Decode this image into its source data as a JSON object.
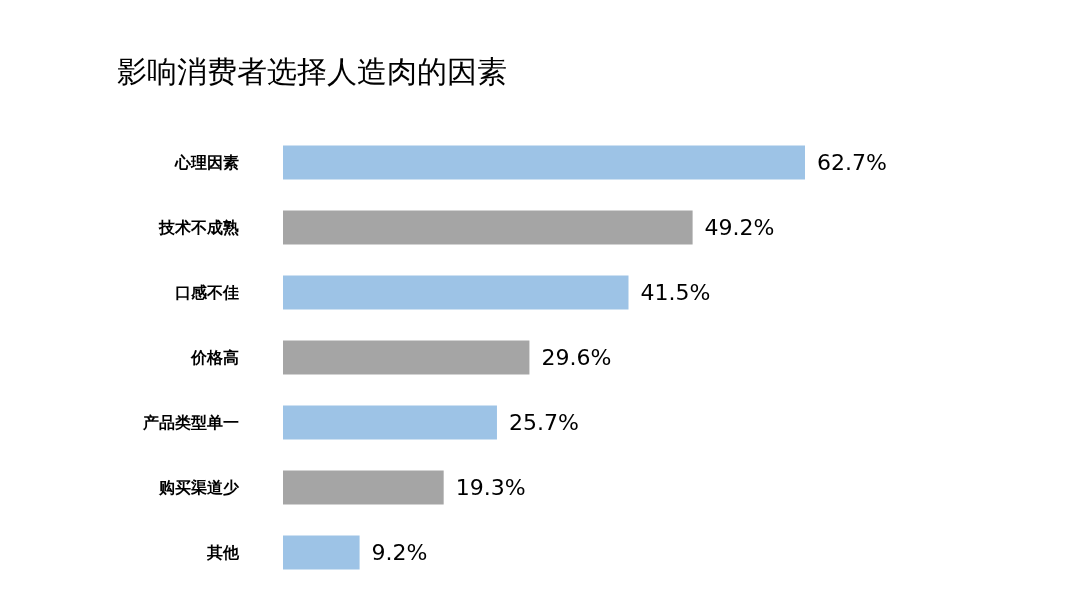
{
  "chart_data": {
    "type": "bar",
    "orientation": "horizontal",
    "title": "影响消费者选择人造肉的因素",
    "categories": [
      "心理因素",
      "技术不成熟",
      "口感不佳",
      "价格高",
      "产品类型单一",
      "购买渠道少",
      "其他"
    ],
    "values": [
      62.7,
      49.2,
      41.5,
      29.6,
      25.7,
      19.3,
      9.2
    ],
    "colors": [
      "#9dc3e6",
      "#a5a5a5",
      "#9dc3e6",
      "#a5a5a5",
      "#9dc3e6",
      "#a5a5a5",
      "#9dc3e6"
    ],
    "value_labels": [
      "62.7%",
      "49.2%",
      "41.5%",
      "29.6%",
      "25.7%",
      "19.3%",
      "9.2%"
    ]
  }
}
